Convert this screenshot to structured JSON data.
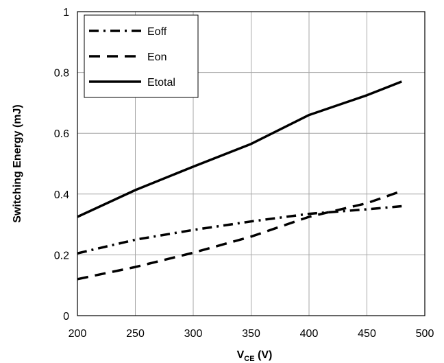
{
  "chart_data": {
    "type": "line",
    "title": "",
    "ylabel": "Switching Energy (mJ)",
    "xlabel_main": "V",
    "xlabel_sub": "CE",
    "xlabel_unit": " (V)",
    "xlim": [
      200,
      500
    ],
    "ylim": [
      0,
      1
    ],
    "xticks": [
      200,
      250,
      300,
      350,
      400,
      450,
      500
    ],
    "yticks": [
      0,
      0.2,
      0.4,
      0.6,
      0.8,
      1
    ],
    "ytick_labels": [
      "0",
      "0.2",
      "0.4",
      "0.6",
      "0.8",
      "1"
    ],
    "grid": true,
    "legend_position": "top-left",
    "series": [
      {
        "name": "Eoff",
        "style": "dash-dot",
        "color": "#000000",
        "x": [
          200,
          250,
          300,
          350,
          400,
          450,
          480
        ],
        "y": [
          0.205,
          0.25,
          0.282,
          0.31,
          0.335,
          0.35,
          0.36
        ]
      },
      {
        "name": "Eon",
        "style": "dashed",
        "color": "#000000",
        "x": [
          200,
          250,
          300,
          350,
          400,
          450,
          480
        ],
        "y": [
          0.12,
          0.16,
          0.207,
          0.26,
          0.325,
          0.37,
          0.41
        ]
      },
      {
        "name": "Etotal",
        "style": "solid",
        "color": "#000000",
        "x": [
          200,
          250,
          300,
          350,
          400,
          450,
          480
        ],
        "y": [
          0.325,
          0.413,
          0.49,
          0.565,
          0.66,
          0.725,
          0.77
        ]
      }
    ]
  }
}
